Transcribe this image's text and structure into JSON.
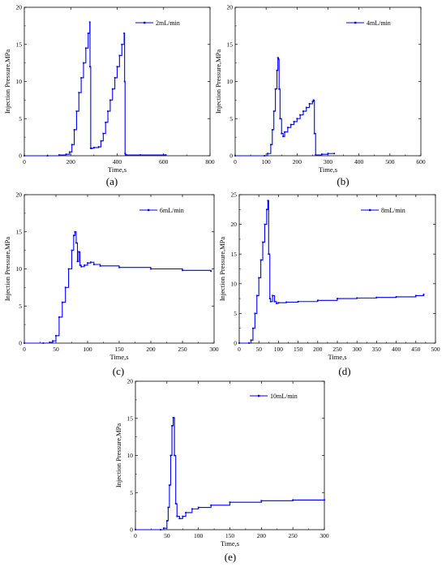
{
  "chart_data": [
    {
      "type": "line",
      "caption": "(a)",
      "xlabel": "Time,s",
      "ylabel": "Injection Pressure,MPa",
      "xlim": [
        0,
        800
      ],
      "ylim": [
        0,
        20
      ],
      "xticks": [
        0,
        200,
        400,
        600,
        800
      ],
      "yticks": [
        0,
        5,
        10,
        15,
        20
      ],
      "xtick_labels": [
        "0",
        "200",
        "400",
        "600",
        "800"
      ],
      "ytick_labels": [
        "0",
        "5",
        "10",
        "15",
        "20"
      ],
      "legend": "top-right",
      "series": [
        {
          "name": "2mL/min",
          "color": "#0000ff",
          "x": [
            0,
            100,
            150,
            180,
            195,
            205,
            215,
            225,
            235,
            245,
            255,
            265,
            275,
            282,
            283,
            286,
            290,
            300,
            320,
            330,
            340,
            350,
            360,
            370,
            380,
            390,
            400,
            410,
            420,
            430,
            432,
            434,
            436,
            440,
            500,
            600,
            610
          ],
          "y": [
            0,
            0,
            0.1,
            0.2,
            0.5,
            1.5,
            3.5,
            6.0,
            8.5,
            10.5,
            12.5,
            14.5,
            16.5,
            18.0,
            12.0,
            1.0,
            1.0,
            1.1,
            1.2,
            2.0,
            3.0,
            4.5,
            6.0,
            7.5,
            9.0,
            10.5,
            12.0,
            13.5,
            15.0,
            16.5,
            10.0,
            0.3,
            0.1,
            0.1,
            0.1,
            0.1,
            0.1
          ]
        }
      ]
    },
    {
      "type": "line",
      "caption": "(b)",
      "xlabel": "Time,s",
      "ylabel": "Injection Pressure,MPa",
      "xlim": [
        0,
        600
      ],
      "ylim": [
        0,
        20
      ],
      "xticks": [
        0,
        100,
        200,
        300,
        400,
        500,
        600
      ],
      "yticks": [
        0,
        5,
        10,
        15,
        20
      ],
      "xtick_labels": [
        "0",
        "100",
        "200",
        "300",
        "400",
        "500",
        "600"
      ],
      "ytick_labels": [
        "0",
        "5",
        "10",
        "15",
        "20"
      ],
      "legend": "top-right",
      "series": [
        {
          "name": "4mL/min",
          "color": "#0000ff",
          "x": [
            0,
            95,
            105,
            115,
            120,
            125,
            130,
            135,
            138,
            140,
            142,
            145,
            150,
            155,
            160,
            170,
            180,
            190,
            200,
            210,
            220,
            230,
            240,
            250,
            253,
            256,
            260,
            280,
            300,
            320
          ],
          "y": [
            0,
            0,
            0.3,
            1.5,
            3.5,
            6.0,
            9.0,
            11.5,
            13.2,
            13.0,
            9.0,
            5.0,
            3.0,
            2.6,
            3.2,
            3.8,
            4.2,
            4.6,
            5.0,
            5.5,
            6.0,
            6.5,
            7.0,
            7.3,
            7.5,
            3.0,
            0.1,
            0.2,
            0.3,
            0.3
          ]
        }
      ]
    },
    {
      "type": "line",
      "caption": "(c)",
      "xlabel": "Time,s",
      "ylabel": "Injection Pressure,MPa",
      "xlim": [
        0,
        300
      ],
      "ylim": [
        0,
        20
      ],
      "xticks": [
        0,
        50,
        100,
        150,
        200,
        250,
        300
      ],
      "yticks": [
        0,
        5,
        10,
        15,
        20
      ],
      "xtick_labels": [
        "0",
        "50",
        "100",
        "150",
        "200",
        "250",
        "300"
      ],
      "ytick_labels": [
        "0",
        "5",
        "10",
        "15",
        "20"
      ],
      "legend": "top-right",
      "series": [
        {
          "name": "6mL/min",
          "color": "#0000ff",
          "x": [
            0,
            30,
            40,
            45,
            50,
            55,
            60,
            65,
            70,
            75,
            78,
            80,
            82,
            84,
            86,
            88,
            90,
            95,
            100,
            105,
            110,
            120,
            150,
            200,
            250,
            295
          ],
          "y": [
            0,
            0,
            0.1,
            0.3,
            1.0,
            3.5,
            5.5,
            7.5,
            10.0,
            12.5,
            14.5,
            15.0,
            13.5,
            11.0,
            12.3,
            10.5,
            10.3,
            10.5,
            10.8,
            10.9,
            10.6,
            10.4,
            10.2,
            10.0,
            9.8,
            9.7
          ]
        }
      ]
    },
    {
      "type": "line",
      "caption": "(d)",
      "xlabel": "Time,s",
      "ylabel": "Injection Pressure,MPa",
      "xlim": [
        0,
        500
      ],
      "ylim": [
        0,
        25
      ],
      "xticks": [
        0,
        50,
        100,
        150,
        200,
        250,
        300,
        350,
        400,
        450,
        500
      ],
      "yticks": [
        0,
        5,
        10,
        15,
        20,
        25
      ],
      "xtick_labels": [
        "0",
        "50",
        "100",
        "150",
        "200",
        "250",
        "300",
        "350",
        "400",
        "450",
        "500"
      ],
      "ytick_labels": [
        "0",
        "5",
        "10",
        "15",
        "20",
        "25"
      ],
      "legend": "top-right",
      "series": [
        {
          "name": "8mL/min",
          "color": "#0000ff",
          "x": [
            0,
            25,
            30,
            35,
            40,
            45,
            50,
            55,
            60,
            65,
            70,
            73,
            75,
            78,
            80,
            85,
            90,
            95,
            100,
            120,
            150,
            200,
            250,
            300,
            350,
            400,
            450,
            470
          ],
          "y": [
            0,
            0,
            0.5,
            2.5,
            5.0,
            8.0,
            11.0,
            14.0,
            17.0,
            20.0,
            22.5,
            24.0,
            15.0,
            7.5,
            7.0,
            8.0,
            7.0,
            6.7,
            6.8,
            6.9,
            7.0,
            7.2,
            7.5,
            7.6,
            7.7,
            7.8,
            8.0,
            8.2
          ]
        }
      ]
    },
    {
      "type": "line",
      "caption": "(e)",
      "xlabel": "Time,s",
      "ylabel": "Injection Pressure,MPa",
      "xlim": [
        0,
        300
      ],
      "ylim": [
        0,
        20
      ],
      "xticks": [
        0,
        50,
        100,
        150,
        200,
        250,
        300
      ],
      "yticks": [
        0,
        5,
        10,
        15,
        20
      ],
      "xtick_labels": [
        "0",
        "50",
        "100",
        "150",
        "200",
        "250",
        "300"
      ],
      "ytick_labels": [
        "0",
        "5",
        "10",
        "15",
        "20"
      ],
      "legend": "top-right",
      "series": [
        {
          "name": "10mL/min",
          "color": "#0000ff",
          "x": [
            0,
            40,
            45,
            50,
            52,
            54,
            56,
            58,
            60,
            62,
            64,
            66,
            70,
            75,
            80,
            90,
            100,
            120,
            150,
            200,
            250,
            300
          ],
          "y": [
            0,
            0,
            0.2,
            1.2,
            3.0,
            6.0,
            10.0,
            14.0,
            15.1,
            10.0,
            3.5,
            1.8,
            1.5,
            1.8,
            2.3,
            2.8,
            3.0,
            3.3,
            3.7,
            3.9,
            4.0,
            4.0
          ]
        }
      ]
    }
  ]
}
